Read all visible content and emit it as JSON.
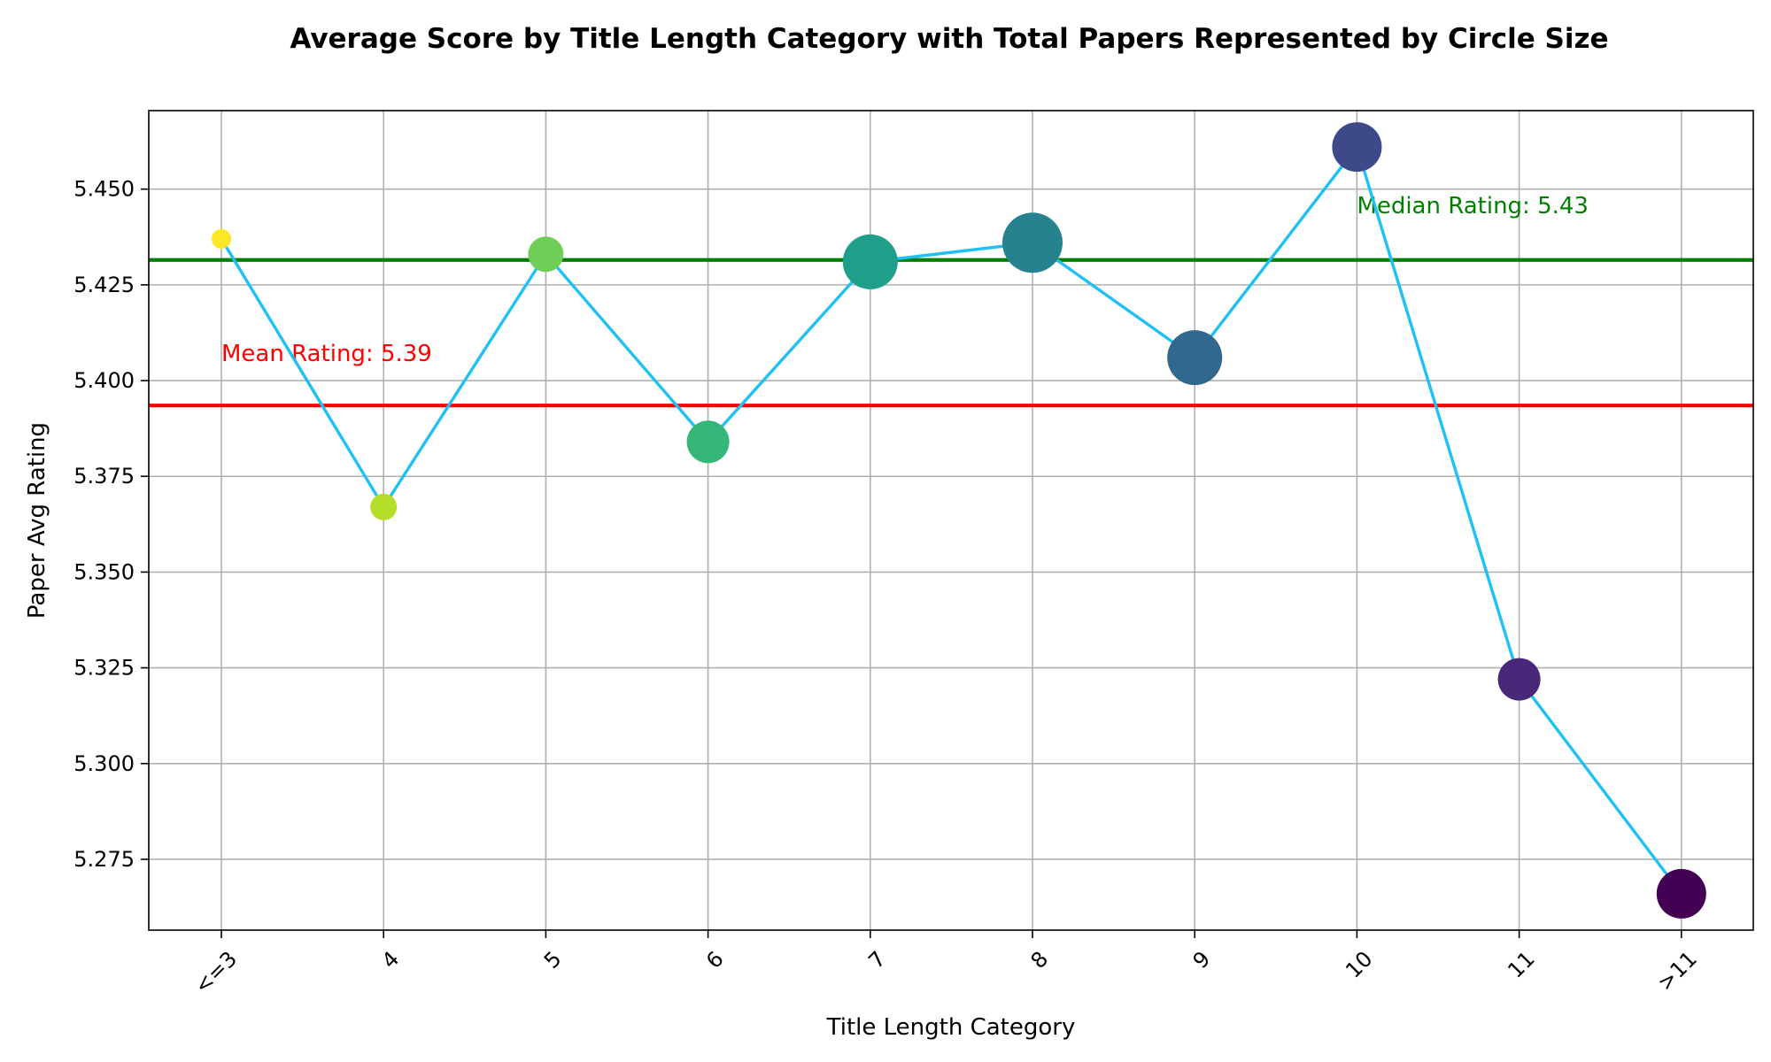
{
  "chart_data": {
    "type": "line",
    "title": "Average Score by Title Length Category with Total Papers Represented by Circle Size",
    "xlabel": "Title Length Category",
    "ylabel": "Paper Avg Rating",
    "categories": [
      "<=3",
      "4",
      "5",
      "6",
      "7",
      "8",
      "9",
      "10",
      "11",
      ">11"
    ],
    "values": [
      5.437,
      5.367,
      5.433,
      5.384,
      5.431,
      5.436,
      5.406,
      5.461,
      5.322,
      5.266
    ],
    "marker_size_rank": [
      1,
      2,
      3,
      4,
      6,
      7,
      6,
      5,
      4,
      5
    ],
    "marker_colors": [
      "#fde725",
      "#b5de2b",
      "#6ece58",
      "#35b779",
      "#1f9e89",
      "#26828e",
      "#31688e",
      "#3e4989",
      "#482878",
      "#440154"
    ],
    "line_color": "#1ec0f5",
    "ylim": [
      5.2565,
      5.4705
    ],
    "yticks": [
      5.275,
      5.3,
      5.325,
      5.35,
      5.375,
      5.4,
      5.425,
      5.45
    ],
    "ytick_labels": [
      "5.275",
      "5.300",
      "5.325",
      "5.350",
      "5.375",
      "5.400",
      "5.425",
      "5.450"
    ],
    "grid": true,
    "reference_lines": [
      {
        "label": "Mean Rating: 5.39",
        "value": 5.3935,
        "color": "#ff0000",
        "label_category_index": 0,
        "label_position": "above"
      },
      {
        "label": "Median Rating: 5.43",
        "value": 5.4315,
        "color": "#008000",
        "label_category_index": 7,
        "label_position": "above-point"
      }
    ]
  }
}
